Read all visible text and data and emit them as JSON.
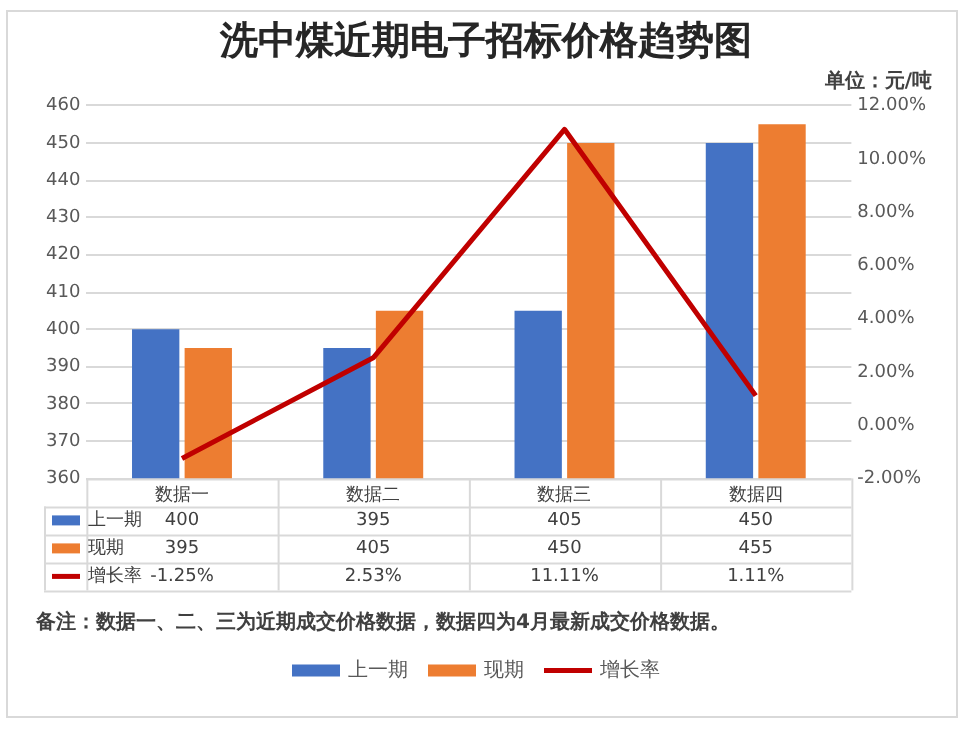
{
  "chart_data": {
    "type": "bar",
    "title": "洗中煤近期电子招标价格趋势图",
    "subtitle": "单位：元/吨",
    "categories": [
      "数据一",
      "数据二",
      "数据三",
      "数据四"
    ],
    "series": [
      {
        "name": "上一期",
        "color": "#4472c4",
        "values": [
          400,
          395,
          405,
          450
        ],
        "value_labels": [
          "400",
          "395",
          "405",
          "450"
        ]
      },
      {
        "name": "现期",
        "color": "#ed7d31",
        "values": [
          395,
          405,
          450,
          455
        ],
        "value_labels": [
          "395",
          "405",
          "450",
          "455"
        ]
      },
      {
        "name": "增长率",
        "type": "line",
        "axis": "y2",
        "color": "#c00000",
        "values": [
          -1.25,
          2.53,
          11.11,
          1.11
        ],
        "value_labels": [
          "-1.25%",
          "2.53%",
          "11.11%",
          "1.11%"
        ]
      }
    ],
    "ylim": [
      360,
      460
    ],
    "yticks": [
      360,
      370,
      380,
      390,
      400,
      410,
      420,
      430,
      440,
      450,
      460
    ],
    "y2lim": [
      -2,
      12
    ],
    "y2ticks": [
      {
        "value": -2,
        "label": "-2.00%"
      },
      {
        "value": 0,
        "label": "0.00%"
      },
      {
        "value": 2,
        "label": "2.00%"
      },
      {
        "value": 4,
        "label": "4.00%"
      },
      {
        "value": 6,
        "label": "6.00%"
      },
      {
        "value": 8,
        "label": "8.00%"
      },
      {
        "value": 10,
        "label": "10.00%"
      },
      {
        "value": 12,
        "label": "12.00%"
      }
    ],
    "grid": "y",
    "legend": "bottom",
    "marker": "none",
    "line_style": "solid",
    "annotations": [
      "备注：数据一、二、三为近期成交价格数据，数据四为4月最新成交价格数据。"
    ]
  }
}
